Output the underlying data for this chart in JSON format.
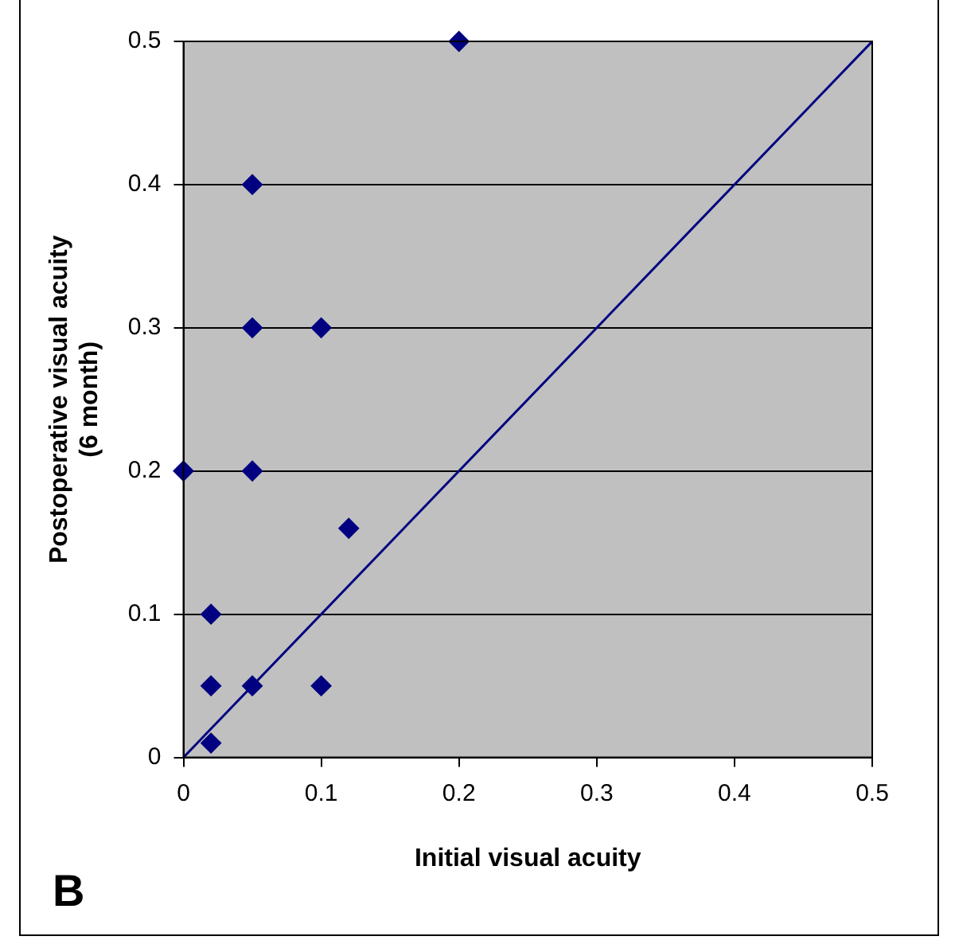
{
  "chart_data": {
    "type": "scatter",
    "xlabel": "Initial visual acuity",
    "ylabel": "Postoperative visual acuity\n(6 month)",
    "annotations": [
      "B"
    ],
    "x": [
      0.2,
      0.05,
      0.05,
      0.1,
      0,
      0.05,
      0.12,
      0.02,
      0.02,
      0.05,
      0.1,
      0.02
    ],
    "series": [
      {
        "color": "#000080",
        "values": [
          0.5,
          0.4,
          0.3,
          0.3,
          0.2,
          0.2,
          0.16,
          0.1,
          0.05,
          0.05,
          0.05,
          0.01
        ]
      },
      {
        "type": "line",
        "color": "#000080",
        "x": [
          0,
          0.5
        ],
        "values": [
          0,
          0.5
        ],
        "marker": "none"
      }
    ],
    "xlim": [
      0,
      0.5
    ],
    "ylim": [
      0,
      0.5
    ],
    "xticks": [
      0,
      0.1,
      0.2,
      0.3,
      0.4,
      0.5
    ],
    "yticks": [
      0,
      0.1,
      0.2,
      0.3,
      0.4,
      0.5
    ],
    "grid": "y",
    "legend": false,
    "marker": "diamond",
    "line_style": "solid"
  }
}
